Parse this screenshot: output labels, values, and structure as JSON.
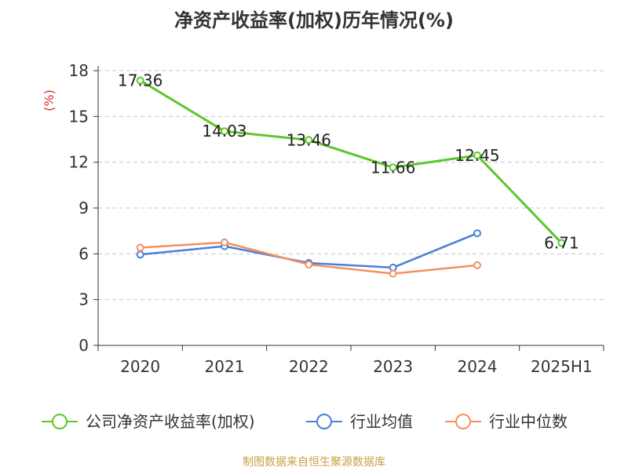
{
  "chart_data": {
    "type": "line",
    "title": "净资产收益率(加权)历年情况(%)",
    "ylabel": "(%)",
    "xlabel": "",
    "categories": [
      "2020",
      "2021",
      "2022",
      "2023",
      "2024",
      "2025H1"
    ],
    "ylim": [
      0,
      18
    ],
    "yticks": [
      0,
      3,
      6,
      9,
      12,
      15,
      18
    ],
    "grid": true,
    "legend_position": "bottom",
    "series": [
      {
        "name": "公司净资产收益率(加权)",
        "color": "#5cc72a",
        "values": [
          17.36,
          14.03,
          13.46,
          11.66,
          12.45,
          6.71
        ],
        "labels": [
          "17.36",
          "14.03",
          "13.46",
          "11.66",
          "12.45",
          "6.71"
        ]
      },
      {
        "name": "行业均值",
        "color": "#4a7fd8",
        "values": [
          5.95,
          6.5,
          5.4,
          5.1,
          7.35,
          null
        ]
      },
      {
        "name": "行业中位数",
        "color": "#f39060",
        "values": [
          6.4,
          6.75,
          5.3,
          4.7,
          5.25,
          null
        ]
      }
    ]
  },
  "source": "制图数据来自恒生聚源数据库"
}
